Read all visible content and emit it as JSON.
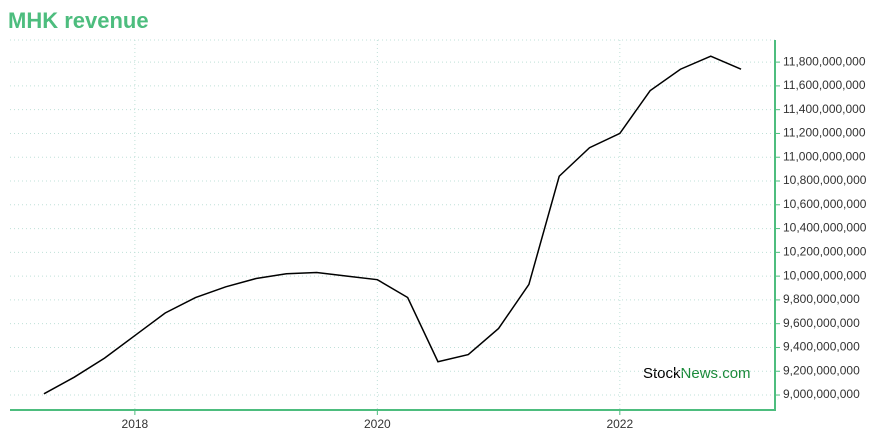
{
  "chart_data": {
    "type": "line",
    "title": "MHK revenue",
    "watermark": {
      "part1": "Stock",
      "part2": "News.com"
    },
    "x": [
      2017.25,
      2017.5,
      2017.75,
      2018.0,
      2018.25,
      2018.5,
      2018.75,
      2019.0,
      2019.25,
      2019.5,
      2019.75,
      2020.0,
      2020.25,
      2020.5,
      2020.75,
      2021.0,
      2021.25,
      2021.5,
      2021.75,
      2022.0,
      2022.25,
      2022.5,
      2022.75,
      2023.0
    ],
    "series": [
      {
        "color": "#000000",
        "values": [
          9010000000,
          9150000000,
          9310000000,
          9500000000,
          9690000000,
          9820000000,
          9910000000,
          9980000000,
          10020000000,
          10030000000,
          10000000000,
          9970000000,
          9820000000,
          9280000000,
          9340000000,
          9560000000,
          9930000000,
          10840000000,
          11080000000,
          11200000000,
          11560000000,
          11740000000,
          11850000000,
          11740000000
        ]
      }
    ],
    "xlim": [
      2016.97,
      2023.28
    ],
    "xticks": [
      2018,
      2020,
      2022
    ],
    "ylim": [
      8874000000,
      11986000000
    ],
    "yticks": [
      {
        "value": 9000000000,
        "label": "9,000,000,000"
      },
      {
        "value": 9200000000,
        "label": "9,200,000,000"
      },
      {
        "value": 9400000000,
        "label": "9,400,000,000"
      },
      {
        "value": 9600000000,
        "label": "9,600,000,000"
      },
      {
        "value": 9800000000,
        "label": "9,800,000,000"
      },
      {
        "value": 10000000000,
        "label": "10,000,000,000"
      },
      {
        "value": 10200000000,
        "label": "10,200,000,000"
      },
      {
        "value": 10400000000,
        "label": "10,400,000,000"
      },
      {
        "value": 10600000000,
        "label": "10,600,000,000"
      },
      {
        "value": 10800000000,
        "label": "10,800,000,000"
      },
      {
        "value": 11000000000,
        "label": "11,000,000,000"
      },
      {
        "value": 11200000000,
        "label": "11,200,000,000"
      },
      {
        "value": 11400000000,
        "label": "11,400,000,000"
      },
      {
        "value": 11600000000,
        "label": "11,600,000,000"
      },
      {
        "value": 11800000000,
        "label": "11,800,000,000"
      }
    ],
    "grid": true
  }
}
